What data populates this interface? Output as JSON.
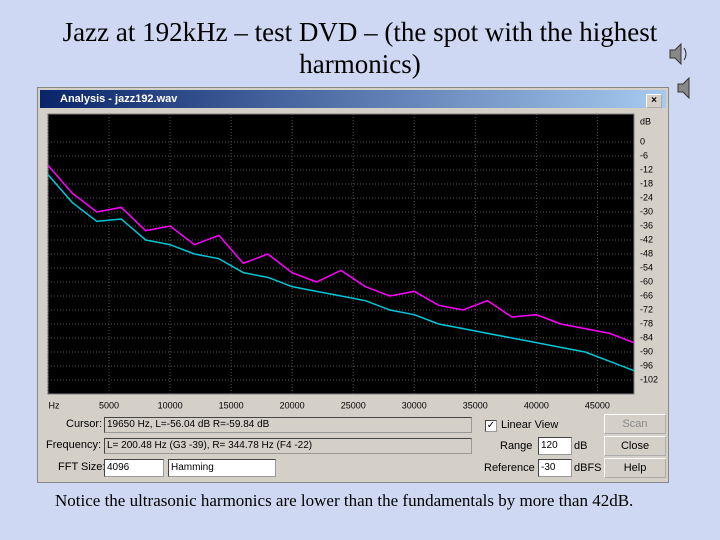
{
  "slide": {
    "title": "Jazz at 192kHz – test DVD – (the spot with the highest harmonics)",
    "footer": "Notice the ultrasonic harmonics are lower than the fundamentals by more than 42dB."
  },
  "window": {
    "title": "Analysis - jazz192.wav",
    "cursor_label": "Cursor:",
    "cursor_value": "19650 Hz, L=-56.04 dB R=-59.84 dB",
    "frequency_label": "Frequency:",
    "frequency_value": "L= 200.48 Hz (G3 -39), R= 344.78 Hz (F4 -22)",
    "fft_label": "FFT Size:",
    "fft_value": "4096",
    "window_value": "Hamming",
    "linear_view": "Linear View",
    "range_label": "Range",
    "range_value": "120",
    "range_unit": "dB",
    "reference_label": "Reference",
    "reference_value": "-30",
    "reference_unit": "dBFS",
    "buttons": [
      "Scan",
      "Close",
      "Help"
    ]
  },
  "chart_data": {
    "type": "line",
    "y_unit": "dB",
    "x": [
      0,
      2000,
      4000,
      6000,
      8000,
      10000,
      12000,
      14000,
      16000,
      18000,
      20000,
      22000,
      24000,
      26000,
      28000,
      30000,
      32000,
      34000,
      36000,
      38000,
      40000,
      42000,
      44000,
      46000,
      48000
    ],
    "series": [
      {
        "name": "R",
        "color": "#00c8d8",
        "values": [
          -14,
          -26,
          -34,
          -33,
          -42,
          -44,
          -48,
          -50,
          -56,
          -58,
          -62,
          -64,
          -66,
          -68,
          -72,
          -74,
          -78,
          -80,
          -82,
          -84,
          -86,
          -88,
          -90,
          -94,
          -98
        ]
      },
      {
        "name": "L",
        "color": "#ff00ff",
        "values": [
          -10,
          -22,
          -30,
          -28,
          -38,
          -36,
          -44,
          -40,
          -52,
          -48,
          -56,
          -60,
          -55,
          -62,
          -66,
          -64,
          -70,
          -72,
          -68,
          -75,
          -74,
          -78,
          -80,
          -82,
          -86
        ]
      }
    ],
    "xlim": [
      0,
      48000
    ],
    "xticks": [
      {
        "value": 0,
        "label": "Hz"
      },
      5000,
      10000,
      15000,
      20000,
      25000,
      30000,
      35000,
      40000,
      45000
    ],
    "ylim": [
      -108,
      12
    ],
    "yticks": [
      0,
      -6,
      -12,
      -18,
      -24,
      -30,
      -36,
      -42,
      -48,
      -54,
      -60,
      -66,
      -72,
      -78,
      -84,
      -90,
      -96,
      -102
    ],
    "grid": true
  }
}
